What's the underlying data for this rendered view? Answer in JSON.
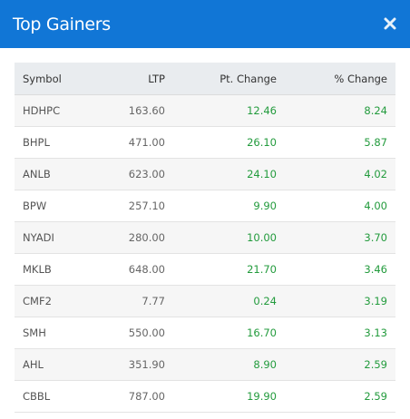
{
  "modal": {
    "title": "Top Gainers",
    "close_icon": "close-icon",
    "header_color": "#1176d6"
  },
  "table": {
    "headers": {
      "symbol": "Symbol",
      "ltp": "LTP",
      "pt_change": "Pt. Change",
      "pct_change": "% Change"
    },
    "positive_color": "#239b3d",
    "rows": [
      {
        "symbol": "HDHPC",
        "ltp": "163.60",
        "pt_change": "12.46",
        "pct_change": "8.24"
      },
      {
        "symbol": "BHPL",
        "ltp": "471.00",
        "pt_change": "26.10",
        "pct_change": "5.87"
      },
      {
        "symbol": "ANLB",
        "ltp": "623.00",
        "pt_change": "24.10",
        "pct_change": "4.02"
      },
      {
        "symbol": "BPW",
        "ltp": "257.10",
        "pt_change": "9.90",
        "pct_change": "4.00"
      },
      {
        "symbol": "NYADI",
        "ltp": "280.00",
        "pt_change": "10.00",
        "pct_change": "3.70"
      },
      {
        "symbol": "MKLB",
        "ltp": "648.00",
        "pt_change": "21.70",
        "pct_change": "3.46"
      },
      {
        "symbol": "CMF2",
        "ltp": "7.77",
        "pt_change": "0.24",
        "pct_change": "3.19"
      },
      {
        "symbol": "SMH",
        "ltp": "550.00",
        "pt_change": "16.70",
        "pct_change": "3.13"
      },
      {
        "symbol": "AHL",
        "ltp": "351.90",
        "pt_change": "8.90",
        "pct_change": "2.59"
      },
      {
        "symbol": "CBBL",
        "ltp": "787.00",
        "pt_change": "19.90",
        "pct_change": "2.59"
      }
    ]
  }
}
